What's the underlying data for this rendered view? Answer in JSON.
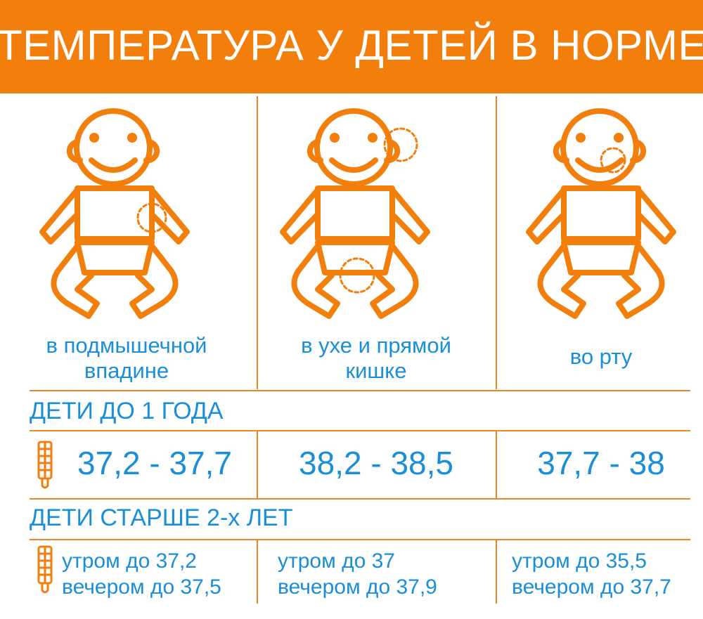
{
  "header": {
    "title": "ТЕМПЕРАТУРА У ДЕТЕЙ В НОРМЕ"
  },
  "colors": {
    "accent": "#f27f0c",
    "text": "#1a8fd6",
    "line": "#e9862a"
  },
  "columns": [
    {
      "place": [
        "в подмышечной",
        "впадине"
      ],
      "icon": "baby-armpit-icon"
    },
    {
      "place": [
        "в ухе и прямой",
        "кишке"
      ],
      "icon": "baby-ear-rectal-icon"
    },
    {
      "place": [
        "во рту"
      ],
      "icon": "baby-mouth-icon"
    }
  ],
  "infants": {
    "label": "ДЕТИ ДО 1 ГОДА",
    "ranges": [
      "37,2 - 37,7",
      "38,2 - 38,5",
      "37,7 - 38"
    ]
  },
  "older": {
    "label": "ДЕТИ СТАРШЕ 2-х ЛЕТ",
    "values": [
      {
        "morning": "утром до 37,2",
        "evening": "вечером до 37,5"
      },
      {
        "morning": "утром до 37",
        "evening": "вечером до 37,9"
      },
      {
        "morning": "утром до 35,5",
        "evening": "вечером до 37,7"
      }
    ]
  }
}
